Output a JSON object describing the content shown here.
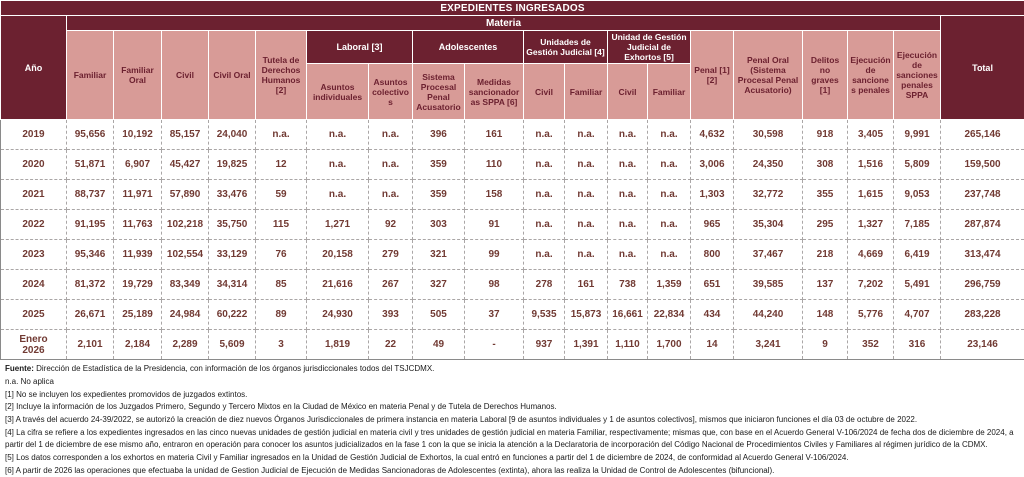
{
  "title": "EXPEDIENTES INGRESADOS",
  "materia_label": "Materia",
  "columns": {
    "anio": "Año",
    "familiar": "Familiar",
    "familiar_oral": "Familiar Oral",
    "civil": "Civil",
    "civil_oral": "Civil Oral",
    "tutela": "Tutela de Derechos Humanos [2]",
    "laboral_group": "Laboral [3]",
    "laboral_individuales": "Asuntos individuales",
    "laboral_colectivos": "Asuntos colectivos",
    "adolescentes_group": "Adolescentes",
    "adolescentes_sppa": "Sistema Procesal Penal Acusatorio",
    "adolescentes_medidas": "Medidas sancionadoras SPPA [6]",
    "ugj_group": "Unidades de Gestión Judicial [4]",
    "ugj_civil": "Civil",
    "ugj_familiar": "Familiar",
    "exhortos_group": "Unidad de Gestión Judicial de Exhortos [5]",
    "exhortos_civil": "Civil",
    "exhortos_familiar": "Familiar",
    "penal": "Penal [1][2]",
    "penal_oral": "Penal Oral (Sistema Procesal Penal Acusatorio)",
    "delitos_no_graves": "Delitos no graves [1]",
    "ejecucion_penales": "Ejecución de sanciones penales",
    "ejecucion_sppa": "Ejecución de sanciones penales SPPA",
    "total": "Total"
  },
  "rows": [
    {
      "year": "2019",
      "values": [
        "95,656",
        "10,192",
        "85,157",
        "24,040",
        "n.a.",
        "n.a.",
        "n.a.",
        "396",
        "161",
        "n.a.",
        "n.a.",
        "n.a.",
        "n.a.",
        "4,632",
        "30,598",
        "918",
        "3,405",
        "9,991",
        "265,146"
      ]
    },
    {
      "year": "2020",
      "values": [
        "51,871",
        "6,907",
        "45,427",
        "19,825",
        "12",
        "n.a.",
        "n.a.",
        "359",
        "110",
        "n.a.",
        "n.a.",
        "n.a.",
        "n.a.",
        "3,006",
        "24,350",
        "308",
        "1,516",
        "5,809",
        "159,500"
      ]
    },
    {
      "year": "2021",
      "values": [
        "88,737",
        "11,971",
        "57,890",
        "33,476",
        "59",
        "n.a.",
        "n.a.",
        "359",
        "158",
        "n.a.",
        "n.a.",
        "n.a.",
        "n.a.",
        "1,303",
        "32,772",
        "355",
        "1,615",
        "9,053",
        "237,748"
      ]
    },
    {
      "year": "2022",
      "values": [
        "91,195",
        "11,763",
        "102,218",
        "35,750",
        "115",
        "1,271",
        "92",
        "303",
        "91",
        "n.a.",
        "n.a.",
        "n.a.",
        "n.a.",
        "965",
        "35,304",
        "295",
        "1,327",
        "7,185",
        "287,874"
      ]
    },
    {
      "year": "2023",
      "values": [
        "95,346",
        "11,939",
        "102,554",
        "33,129",
        "76",
        "20,158",
        "279",
        "321",
        "99",
        "n.a.",
        "n.a.",
        "n.a.",
        "n.a.",
        "800",
        "37,467",
        "218",
        "4,669",
        "6,419",
        "313,474"
      ]
    },
    {
      "year": "2024",
      "values": [
        "81,372",
        "19,729",
        "83,349",
        "34,314",
        "85",
        "21,616",
        "267",
        "327",
        "98",
        "278",
        "161",
        "738",
        "1,359",
        "651",
        "39,585",
        "137",
        "7,202",
        "5,491",
        "296,759"
      ]
    },
    {
      "year": "2025",
      "values": [
        "26,671",
        "25,189",
        "24,984",
        "60,222",
        "89",
        "24,930",
        "393",
        "505",
        "37",
        "9,535",
        "15,873",
        "16,661",
        "22,834",
        "434",
        "44,240",
        "148",
        "5,776",
        "4,707",
        "283,228"
      ]
    },
    {
      "year": "Enero\n2026",
      "values": [
        "2,101",
        "2,184",
        "2,289",
        "5,609",
        "3",
        "1,819",
        "22",
        "49",
        "-",
        "937",
        "1,391",
        "1,110",
        "1,700",
        "14",
        "3,241",
        "9",
        "352",
        "316",
        "23,146"
      ]
    }
  ],
  "footer": {
    "source_label": "Fuente:",
    "source_text": " Dirección de Estadística de la Presidencia, con información de los órganos jurisdiccionales todos del TSJCDMX.",
    "na_note": "n.a. No aplica",
    "notes": [
      "[1] No se incluyen los expedientes promovidos de juzgados extintos.",
      "[2] Incluye la información de los Juzgados Primero, Segundo y Tercero Mixtos en la Ciudad de México en materia Penal y de Tutela de Derechos Humanos.",
      "[3] A través del acuerdo 24-39/2022, se autorizó la creación de diez nuevos Órganos Jurisdiccionales de primera instancia en materia Laboral [9 de asuntos individuales y 1 de asuntos colectivos], mismos que iniciaron funciones el día 03 de octubre de 2022.",
      "[4] La cifra se refiere a los expedientes ingresados en las cinco nuevas unidades de gestión judicial en materia civil y tres unidades de gestión judicial en materia Familiar, respectivamente; mismas que, con base en el Acuerdo General V-106/2024 de fecha dos de diciembre de 2024, a partir del 1 de diciembre de ese mismo año, entraron en operación para conocer los asuntos judicializados en la fase 1 con la que se inicia la atención a la Declaratoria de incorporación del Código Nacional de Procedimientos Civiles y Familiares al régimen jurídico de la CDMX.",
      "[5] Los datos corresponden a los exhortos en materia Civil y Familiar ingresados en la Unidad de Gestión Judicial de Exhortos, la cual entró en funciones a partir del 1 de diciembre de 2024, de conformidad al Acuerdo General V-106/2024.",
      "[6] A partir de 2026 las operaciones que efectuaba la unidad de Gestion Judicial de Ejecución de Medidas Sancionadoras de Adolescentes (extinta), ahora las realiza la Unidad de Control de Adolescentes (bifuncional)."
    ]
  },
  "colors": {
    "header_dark": "#6C2130",
    "header_pink": "#D89B97",
    "data_text": "#713A33"
  }
}
